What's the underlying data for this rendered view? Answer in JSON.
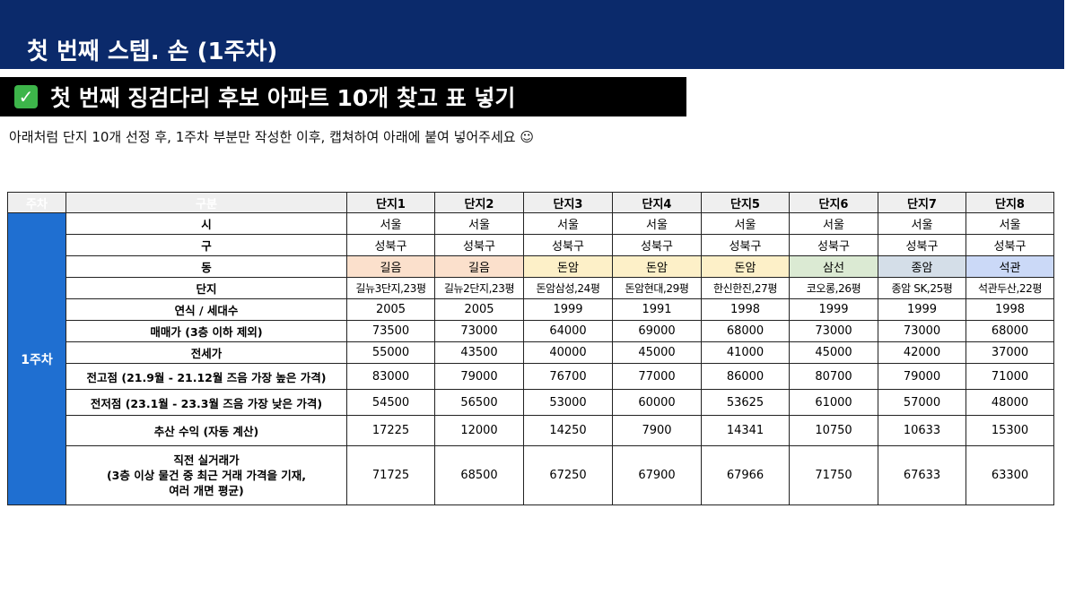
{
  "header": {
    "title": "첫 번째 스텝. 손 (1주차)"
  },
  "subheader": {
    "text": "첫 번째 징검다리 후보 아파트 10개 찾고 표 넣기",
    "icon": "check-mark-icon"
  },
  "instruction": {
    "text": "아래처럼 단지 10개 선정 후, 1주차 부분만 작성한 이후, 캡쳐하여 아래에 붙여 넣어주세요 ☺"
  },
  "table": {
    "week_header": "주차",
    "category_header": "구분",
    "week_label": "1주차",
    "columns": [
      "단지1",
      "단지2",
      "단지3",
      "단지4",
      "단지5",
      "단지6",
      "단지7",
      "단지8"
    ],
    "rows": [
      {
        "label": "시",
        "values": [
          "서울",
          "서울",
          "서울",
          "서울",
          "서울",
          "서울",
          "서울",
          "서울"
        ]
      },
      {
        "label": "구",
        "values": [
          "성북구",
          "성북구",
          "성북구",
          "성북구",
          "성북구",
          "성북구",
          "성북구",
          "성북구"
        ]
      },
      {
        "label": "동",
        "values": [
          "길음",
          "길음",
          "돈암",
          "돈암",
          "돈암",
          "삼선",
          "종암",
          "석관"
        ]
      },
      {
        "label": "단지",
        "values": [
          "길뉴3단지,23평",
          "길뉴2단지,23평",
          "돈암삼성,24평",
          "돈암현대,29평",
          "한신한진,27평",
          "코오롱,26평",
          "종암 SK,25평",
          "석관두산,22평"
        ]
      },
      {
        "label": "연식 / 세대수",
        "values": [
          "2005",
          "2005",
          "1999",
          "1991",
          "1998",
          "1999",
          "1999",
          "1998"
        ]
      },
      {
        "label": "매매가 (3층 이하 제외)",
        "values": [
          "73500",
          "73000",
          "64000",
          "69000",
          "68000",
          "73000",
          "73000",
          "68000"
        ]
      },
      {
        "label": "전세가",
        "values": [
          "55000",
          "43500",
          "40000",
          "45000",
          "41000",
          "45000",
          "42000",
          "37000"
        ]
      },
      {
        "label": "전고점 (21.9월 - 21.12월 즈음 가장 높은 가격)",
        "values": [
          "83000",
          "79000",
          "76700",
          "77000",
          "86000",
          "80700",
          "79000",
          "71000"
        ]
      },
      {
        "label": "전저점 (23.1월 - 23.3월 즈음 가장 낮은 가격)",
        "values": [
          "54500",
          "56500",
          "53000",
          "60000",
          "53625",
          "61000",
          "57000",
          "48000"
        ]
      },
      {
        "label": "추산 수익 (자동 계산)",
        "values": [
          "17225",
          "12000",
          "14250",
          "7900",
          "14341",
          "10750",
          "10633",
          "15300"
        ]
      },
      {
        "label_lines": [
          "직전 실거래가",
          "(3층 이상 물건 중 최근 거래 가격을 기재,",
          "여러 개면 평균)"
        ],
        "values": [
          "71725",
          "68500",
          "67250",
          "67900",
          "67966",
          "71750",
          "67633",
          "63300"
        ]
      }
    ]
  }
}
